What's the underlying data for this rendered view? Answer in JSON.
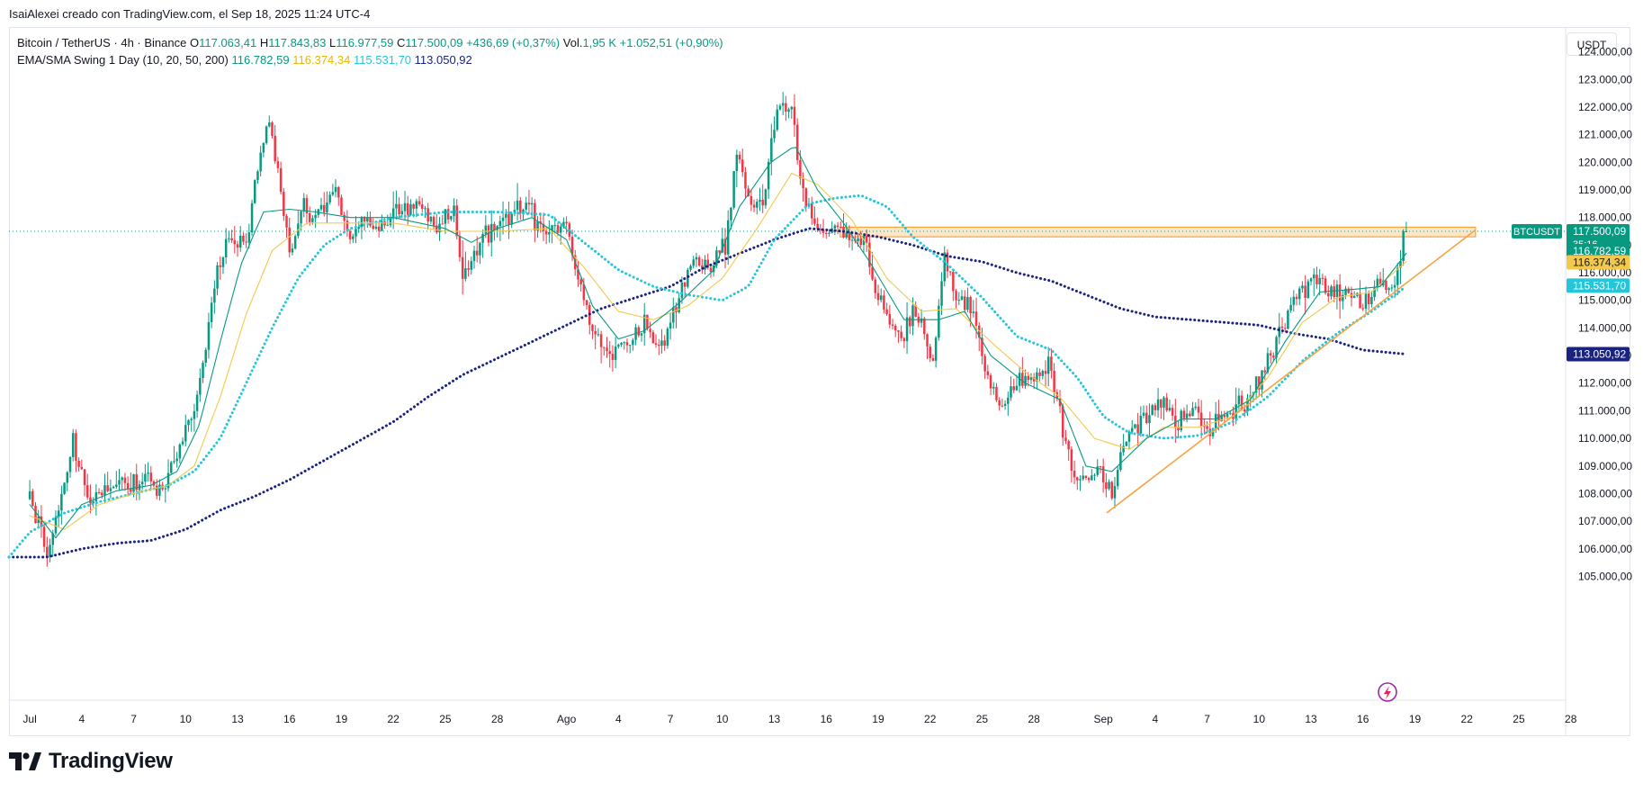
{
  "header": {
    "attribution": "IsaiAlexei creado con TradingView.com, el Sep 18, 2025 11:24 UTC-4"
  },
  "legend": {
    "symbol": "Bitcoin / TetherUS · 4h · Binance",
    "o_label": "O",
    "o_value": "117.063,41",
    "h_label": "H",
    "h_value": "117.843,83",
    "l_label": "L",
    "l_value": "116.977,59",
    "c_label": "C",
    "c_value": "117.500,09",
    "change": "+436,69 (+0,37%)",
    "vol_label": "Vol.",
    "vol_value": "1,95 K",
    "vol_change": "+1.052,51 (+0,90%)",
    "indicator_name": "EMA/SMA Swing 1 Day (10, 20, 50, 200)",
    "ind_values": [
      "116.782,59",
      "116.374,34",
      "115.531,70",
      "113.050,92"
    ]
  },
  "currency_button": "USDT",
  "brand": "TradingView",
  "colors": {
    "up": "#089981",
    "down": "#f23645",
    "ema10": "#089981",
    "ema20": "#f2c94c",
    "ema50": "#26c6da",
    "sma200": "#1a237e",
    "resistance_zone": "#f7a440",
    "trendline": "#f7a440",
    "last_price_line": "#089981"
  },
  "chart_data": {
    "type": "candlestick",
    "symbol_label": "BTCUSDT",
    "y_ticks": [
      124000,
      123000,
      122000,
      121000,
      120000,
      119000,
      118000,
      117000,
      116000,
      115000,
      114000,
      113000,
      112000,
      111000,
      110000,
      109000,
      108000,
      107000,
      106000,
      105000
    ],
    "y_tick_labels": [
      "124.000,00",
      "123.000,00",
      "122.000,00",
      "121.000,00",
      "120.000,00",
      "119.000,00",
      "118.000,00",
      "117.000,00",
      "116.000,00",
      "115.000,00",
      "114.000,00",
      "113.000,00",
      "112.000,00",
      "111.000,00",
      "110.000,00",
      "109.000,00",
      "108.000,00",
      "107.000,00",
      "106.000,00",
      "105.000,00"
    ],
    "ylim": [
      104200,
      124900
    ],
    "x_range_days": [
      -1.2,
      88.6
    ],
    "x_ticks": [
      {
        "day": 0,
        "label": "Jul"
      },
      {
        "day": 3,
        "label": "4"
      },
      {
        "day": 6,
        "label": "7"
      },
      {
        "day": 9,
        "label": "10"
      },
      {
        "day": 12,
        "label": "13"
      },
      {
        "day": 15,
        "label": "16"
      },
      {
        "day": 18,
        "label": "19"
      },
      {
        "day": 21,
        "label": "22"
      },
      {
        "day": 24,
        "label": "25"
      },
      {
        "day": 27,
        "label": "28"
      },
      {
        "day": 31,
        "label": "Ago"
      },
      {
        "day": 34,
        "label": "4"
      },
      {
        "day": 37,
        "label": "7"
      },
      {
        "day": 40,
        "label": "10"
      },
      {
        "day": 43,
        "label": "13"
      },
      {
        "day": 46,
        "label": "16"
      },
      {
        "day": 49,
        "label": "19"
      },
      {
        "day": 52,
        "label": "22"
      },
      {
        "day": 55,
        "label": "25"
      },
      {
        "day": 58,
        "label": "28"
      },
      {
        "day": 62,
        "label": "Sep"
      },
      {
        "day": 65,
        "label": "4"
      },
      {
        "day": 68,
        "label": "7"
      },
      {
        "day": 71,
        "label": "10"
      },
      {
        "day": 74,
        "label": "13"
      },
      {
        "day": 77,
        "label": "16"
      },
      {
        "day": 80,
        "label": "19"
      },
      {
        "day": 83,
        "label": "22"
      },
      {
        "day": 86,
        "label": "25"
      },
      {
        "day": 89,
        "label": "28"
      }
    ],
    "price_anchors": [
      [
        0,
        107800
      ],
      [
        0.5,
        106800
      ],
      [
        1,
        105600
      ],
      [
        1.5,
        107200
      ],
      [
        2.5,
        109800
      ],
      [
        3.5,
        107600
      ],
      [
        4.5,
        108400
      ],
      [
        5.5,
        108200
      ],
      [
        6.5,
        108600
      ],
      [
        7.5,
        108000
      ],
      [
        8.5,
        109500
      ],
      [
        9.5,
        111000
      ],
      [
        10.2,
        113500
      ],
      [
        10.8,
        116000
      ],
      [
        11.5,
        117300
      ],
      [
        12.5,
        117000
      ],
      [
        13.2,
        120000
      ],
      [
        13.8,
        121500
      ],
      [
        14.5,
        119000
      ],
      [
        15,
        116500
      ],
      [
        15.8,
        118800
      ],
      [
        16.5,
        117800
      ],
      [
        17.5,
        119200
      ],
      [
        18.5,
        117200
      ],
      [
        19.5,
        118000
      ],
      [
        20.5,
        117600
      ],
      [
        21.5,
        118300
      ],
      [
        22.5,
        118400
      ],
      [
        23.5,
        117800
      ],
      [
        24.5,
        118200
      ],
      [
        25,
        115500
      ],
      [
        25.8,
        117000
      ],
      [
        26.8,
        117600
      ],
      [
        27.8,
        118200
      ],
      [
        28.8,
        118300
      ],
      [
        29.8,
        117300
      ],
      [
        30.8,
        117800
      ],
      [
        31.6,
        116200
      ],
      [
        32.4,
        114200
      ],
      [
        33.4,
        113000
      ],
      [
        34.4,
        113400
      ],
      [
        35.5,
        114200
      ],
      [
        36.4,
        113200
      ],
      [
        37.2,
        114500
      ],
      [
        38.2,
        116600
      ],
      [
        39.2,
        116100
      ],
      [
        40.2,
        117000
      ],
      [
        40.9,
        120500
      ],
      [
        41.6,
        118400
      ],
      [
        42.4,
        118800
      ],
      [
        43.2,
        122000
      ],
      [
        44,
        121800
      ],
      [
        44.6,
        119000
      ],
      [
        45.2,
        118000
      ],
      [
        45.8,
        117200
      ],
      [
        46.6,
        117800
      ],
      [
        47.4,
        116900
      ],
      [
        48.2,
        117200
      ],
      [
        48.6,
        115600
      ],
      [
        49.4,
        114500
      ],
      [
        50.3,
        113500
      ],
      [
        51.2,
        114800
      ],
      [
        52.2,
        112600
      ],
      [
        52.8,
        116500
      ],
      [
        53.5,
        115200
      ],
      [
        54.5,
        114600
      ],
      [
        55.2,
        112200
      ],
      [
        56.2,
        111000
      ],
      [
        57.2,
        112300
      ],
      [
        58.2,
        112200
      ],
      [
        58.9,
        112800
      ],
      [
        59.5,
        110800
      ],
      [
        60.2,
        108600
      ],
      [
        61,
        108400
      ],
      [
        61.8,
        108800
      ],
      [
        62.5,
        108000
      ],
      [
        63.2,
        109800
      ],
      [
        64.2,
        110700
      ],
      [
        65.2,
        111200
      ],
      [
        66.2,
        110700
      ],
      [
        67.2,
        111000
      ],
      [
        68.2,
        110500
      ],
      [
        69.2,
        111000
      ],
      [
        70.2,
        111400
      ],
      [
        71.2,
        112400
      ],
      [
        72.2,
        113800
      ],
      [
        73.2,
        115200
      ],
      [
        74.2,
        115700
      ],
      [
        75.2,
        115300
      ],
      [
        76.2,
        115300
      ],
      [
        77,
        114700
      ],
      [
        78,
        115800
      ],
      [
        78.6,
        115100
      ],
      [
        79,
        116300
      ],
      [
        79.5,
        117500
      ]
    ],
    "ema10_anchors": [
      [
        0,
        107600
      ],
      [
        1.5,
        106400
      ],
      [
        3,
        107600
      ],
      [
        5,
        108100
      ],
      [
        7,
        108300
      ],
      [
        8.5,
        108800
      ],
      [
        9.8,
        110500
      ],
      [
        11,
        113500
      ],
      [
        12.2,
        116300
      ],
      [
        13.5,
        118200
      ],
      [
        15,
        118300
      ],
      [
        16.5,
        118200
      ],
      [
        18.5,
        118000
      ],
      [
        21,
        118000
      ],
      [
        24,
        117600
      ],
      [
        25.5,
        117100
      ],
      [
        27,
        117600
      ],
      [
        29,
        118000
      ],
      [
        31,
        117200
      ],
      [
        32.5,
        114800
      ],
      [
        34,
        113600
      ],
      [
        35.5,
        113900
      ],
      [
        37.5,
        114900
      ],
      [
        39.5,
        116100
      ],
      [
        41,
        118400
      ],
      [
        42.8,
        120000
      ],
      [
        44.2,
        120600
      ],
      [
        45.5,
        119000
      ],
      [
        47,
        117800
      ],
      [
        48.5,
        116400
      ],
      [
        50.5,
        114300
      ],
      [
        52.5,
        114300
      ],
      [
        54,
        114600
      ],
      [
        55.5,
        113000
      ],
      [
        57.5,
        112000
      ],
      [
        59.5,
        111400
      ],
      [
        61,
        109000
      ],
      [
        62.5,
        108800
      ],
      [
        64.5,
        110000
      ],
      [
        66.5,
        110700
      ],
      [
        68.5,
        110700
      ],
      [
        70.5,
        111400
      ],
      [
        72.5,
        113500
      ],
      [
        74.5,
        115300
      ],
      [
        76.5,
        115400
      ],
      [
        78,
        115500
      ],
      [
        79.5,
        116700
      ]
    ],
    "ema20_anchors": [
      [
        0,
        107200
      ],
      [
        2,
        106700
      ],
      [
        4,
        107600
      ],
      [
        6,
        108000
      ],
      [
        8,
        108300
      ],
      [
        9.5,
        109000
      ],
      [
        11,
        111500
      ],
      [
        12.5,
        114500
      ],
      [
        14,
        116800
      ],
      [
        16,
        117800
      ],
      [
        18,
        117800
      ],
      [
        21,
        117800
      ],
      [
        24,
        117500
      ],
      [
        27,
        117500
      ],
      [
        30,
        117600
      ],
      [
        32,
        116200
      ],
      [
        34,
        114600
      ],
      [
        36,
        114300
      ],
      [
        38,
        114800
      ],
      [
        40,
        115800
      ],
      [
        42,
        117600
      ],
      [
        44,
        119600
      ],
      [
        45.5,
        119200
      ],
      [
        47.5,
        117900
      ],
      [
        49.5,
        115800
      ],
      [
        51.5,
        114600
      ],
      [
        53.5,
        114700
      ],
      [
        55.5,
        113500
      ],
      [
        57.5,
        112400
      ],
      [
        59.5,
        111500
      ],
      [
        61.5,
        110000
      ],
      [
        63.5,
        109600
      ],
      [
        65.5,
        110400
      ],
      [
        67.5,
        110400
      ],
      [
        69.5,
        110800
      ],
      [
        71.5,
        112200
      ],
      [
        73.5,
        114200
      ],
      [
        75.5,
        115100
      ],
      [
        77.5,
        115300
      ],
      [
        79.5,
        116400
      ]
    ],
    "ema50_anchors": [
      [
        -1.2,
        105700
      ],
      [
        0,
        106600
      ],
      [
        2,
        107300
      ],
      [
        4,
        107700
      ],
      [
        6,
        108000
      ],
      [
        8,
        108300
      ],
      [
        9.5,
        108800
      ],
      [
        11,
        110000
      ],
      [
        12.5,
        112000
      ],
      [
        14,
        114000
      ],
      [
        15.5,
        115800
      ],
      [
        17,
        117000
      ],
      [
        18.5,
        117600
      ],
      [
        21,
        118000
      ],
      [
        24,
        118200
      ],
      [
        27,
        118200
      ],
      [
        30,
        118100
      ],
      [
        32,
        117100
      ],
      [
        34,
        116100
      ],
      [
        36,
        115500
      ],
      [
        38,
        115200
      ],
      [
        40,
        115000
      ],
      [
        41.5,
        115500
      ],
      [
        43,
        117200
      ],
      [
        45,
        118500
      ],
      [
        46.5,
        118700
      ],
      [
        48,
        118800
      ],
      [
        49.5,
        118400
      ],
      [
        51,
        117300
      ],
      [
        53,
        116300
      ],
      [
        55,
        115100
      ],
      [
        57,
        113700
      ],
      [
        59,
        113200
      ],
      [
        60.5,
        112200
      ],
      [
        62,
        110800
      ],
      [
        63.5,
        110200
      ],
      [
        65.5,
        110000
      ],
      [
        67.5,
        110100
      ],
      [
        69.5,
        110600
      ],
      [
        71.5,
        111500
      ],
      [
        73.5,
        112800
      ],
      [
        75.5,
        113800
      ],
      [
        77.5,
        114600
      ],
      [
        79.5,
        115500
      ]
    ],
    "sma200_anchors": [
      [
        -1.2,
        105700
      ],
      [
        1,
        105700
      ],
      [
        3,
        106000
      ],
      [
        5,
        106200
      ],
      [
        7,
        106300
      ],
      [
        9,
        106700
      ],
      [
        11,
        107400
      ],
      [
        13,
        107900
      ],
      [
        15,
        108500
      ],
      [
        17,
        109200
      ],
      [
        19,
        109900
      ],
      [
        21,
        110600
      ],
      [
        23,
        111500
      ],
      [
        25,
        112300
      ],
      [
        27,
        112900
      ],
      [
        29,
        113500
      ],
      [
        31,
        114100
      ],
      [
        33,
        114700
      ],
      [
        35,
        115100
      ],
      [
        37,
        115500
      ],
      [
        39,
        116200
      ],
      [
        41,
        116700
      ],
      [
        43,
        117200
      ],
      [
        45,
        117600
      ],
      [
        47,
        117500
      ],
      [
        49,
        117300
      ],
      [
        51,
        117000
      ],
      [
        53,
        116600
      ],
      [
        55,
        116400
      ],
      [
        57,
        116000
      ],
      [
        59,
        115700
      ],
      [
        61,
        115200
      ],
      [
        63,
        114700
      ],
      [
        65,
        114400
      ],
      [
        67,
        114300
      ],
      [
        69,
        114200
      ],
      [
        71,
        114100
      ],
      [
        73,
        113800
      ],
      [
        75,
        113600
      ],
      [
        77,
        113200
      ],
      [
        79.5,
        113050
      ]
    ],
    "resistance_zone": {
      "day_start": 46.8,
      "day_end": 83.5,
      "price_low": 117300,
      "price_high": 117650
    },
    "trendline": {
      "points": [
        [
          62.2,
          107300
        ],
        [
          83.5,
          117550
        ]
      ]
    },
    "last_price": 117500.09,
    "price_labels": [
      {
        "value": 117500.09,
        "label": "117.500,09",
        "extra": "35:16",
        "color": "#089981"
      },
      {
        "value": 116782.59,
        "label": "116.782,59",
        "color": "#089981"
      },
      {
        "value": 116374.34,
        "label": "116.374,34",
        "color": "#f2c94c"
      },
      {
        "value": 115531.7,
        "label": "115.531,70",
        "color": "#26c6da"
      },
      {
        "value": 113050.92,
        "label": "113.050,92",
        "color": "#1a237e"
      }
    ]
  }
}
